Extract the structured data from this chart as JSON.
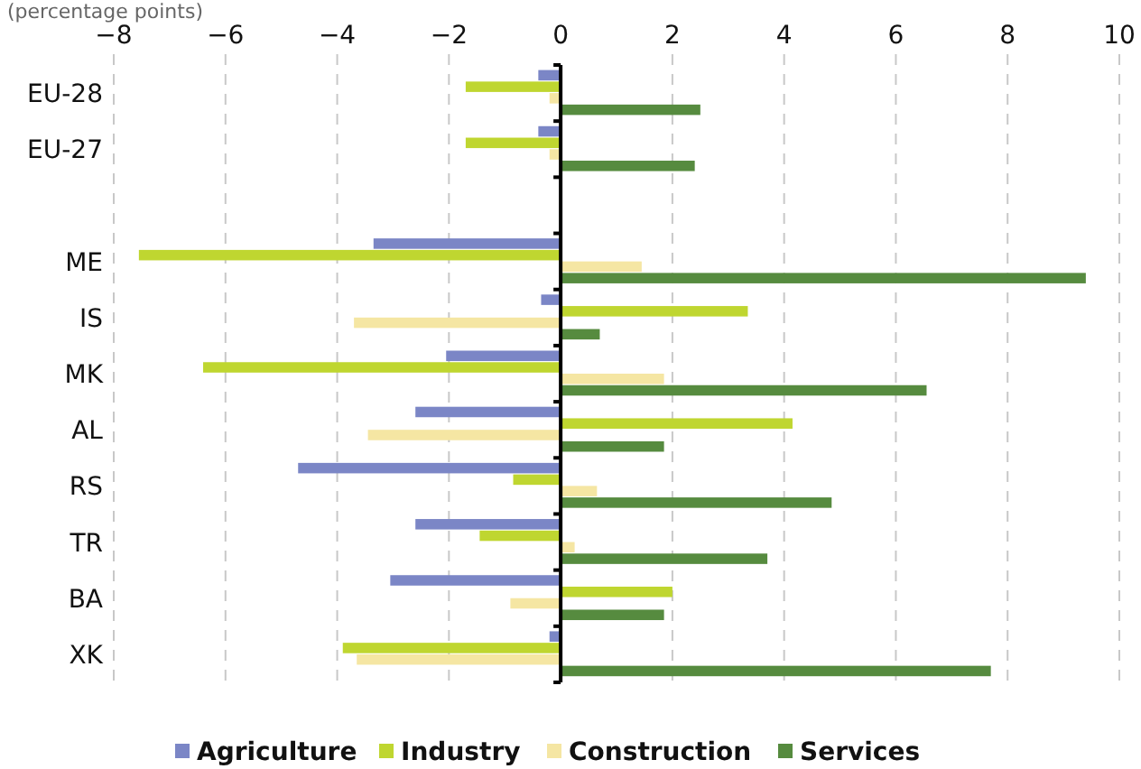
{
  "chart_data": {
    "type": "bar",
    "orientation": "horizontal",
    "subtitle": "(percentage points)",
    "categories": [
      "EU-28",
      "EU-27",
      null,
      "ME",
      "IS",
      "MK",
      "AL",
      "RS",
      "TR",
      "BA",
      "XK"
    ],
    "series": [
      {
        "name": "Agriculture",
        "color": "#7b86c6",
        "values": [
          -0.4,
          -0.4,
          null,
          -3.35,
          -0.35,
          -2.05,
          -2.6,
          -4.7,
          -2.6,
          -3.05,
          -0.2
        ]
      },
      {
        "name": "Industry",
        "color": "#bfd630",
        "values": [
          -1.7,
          -1.7,
          null,
          -7.55,
          3.35,
          -6.4,
          4.15,
          -0.85,
          -1.45,
          2.0,
          -3.9
        ]
      },
      {
        "name": "Construction",
        "color": "#f5e6a3",
        "values": [
          -0.2,
          -0.2,
          null,
          1.45,
          -3.7,
          1.85,
          -3.45,
          0.65,
          0.25,
          -0.9,
          -3.65
        ]
      },
      {
        "name": "Services",
        "color": "#568b3f",
        "values": [
          2.5,
          2.4,
          null,
          9.4,
          0.7,
          6.55,
          1.85,
          4.85,
          3.7,
          1.85,
          7.7
        ]
      }
    ],
    "xlim": [
      -8,
      10
    ],
    "xticks": [
      {
        "value": -8,
        "label": "−8"
      },
      {
        "value": -6,
        "label": "−6"
      },
      {
        "value": -4,
        "label": "−4"
      },
      {
        "value": -2,
        "label": "−2"
      },
      0,
      2,
      4,
      6,
      8,
      10
    ],
    "grid": "x",
    "legend": "bottom"
  }
}
